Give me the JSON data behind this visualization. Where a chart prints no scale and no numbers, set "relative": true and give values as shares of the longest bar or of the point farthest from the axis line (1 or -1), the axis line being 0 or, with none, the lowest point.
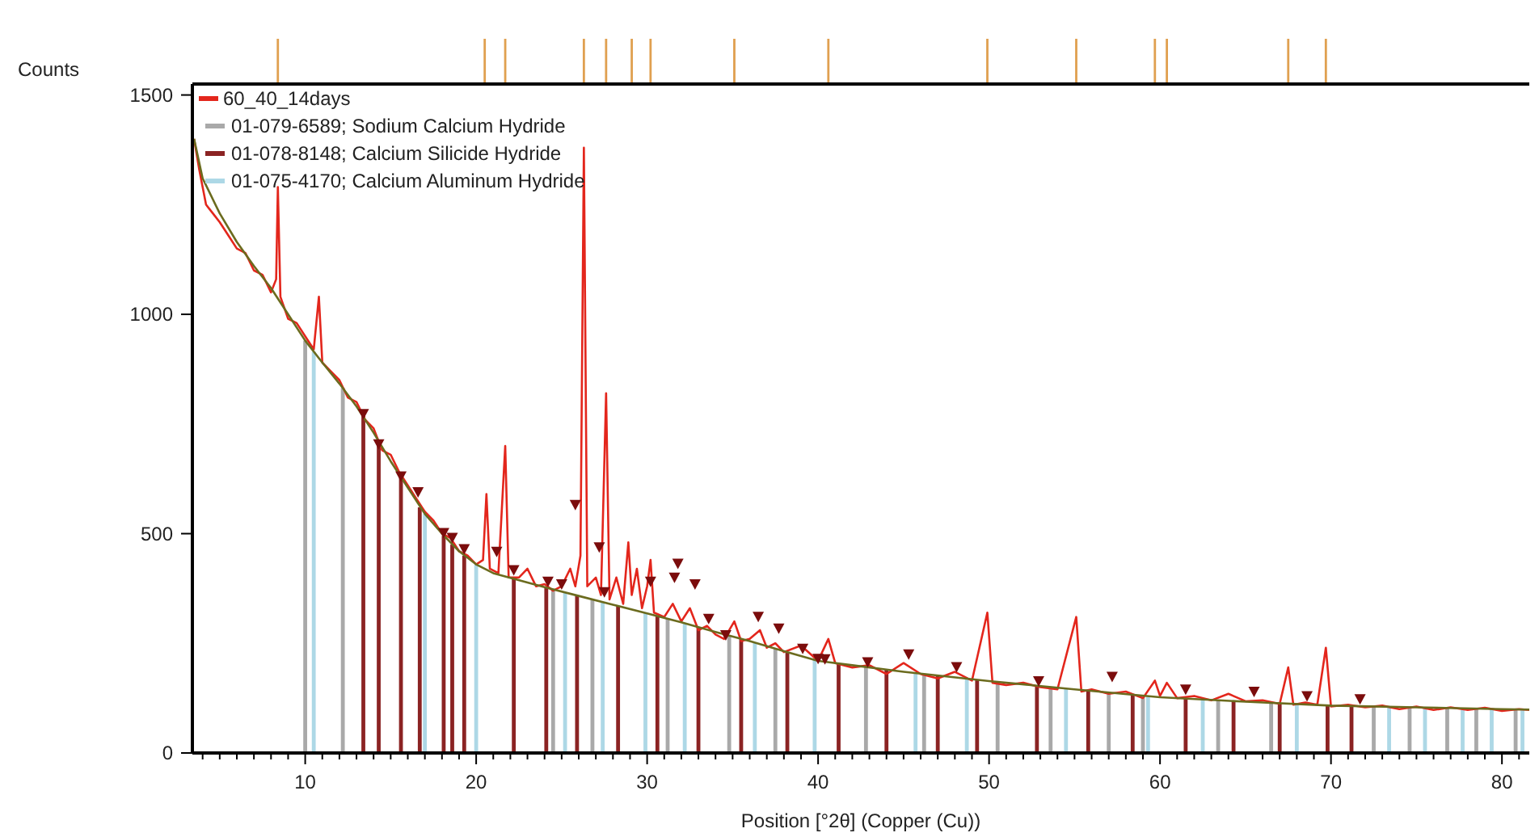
{
  "chart_data": [
    {
      "type": "bar",
      "relative": true,
      "xlim": [
        3.4,
        81.6
      ],
      "color": "#e0a050",
      "x": [
        8.4,
        20.5,
        21.7,
        26.3,
        27.6,
        29.1,
        30.2,
        35.1,
        40.6,
        49.9,
        55.1,
        59.7,
        60.4,
        67.5,
        69.7
      ],
      "values": [
        1,
        1,
        1,
        1,
        1,
        1,
        1,
        1,
        1,
        1,
        1,
        1,
        1,
        1,
        1
      ]
    },
    {
      "type": "line",
      "xlabel": "Position [°2θ] (Copper (Cu))",
      "ylabel": "Counts",
      "xlim": [
        3.4,
        81.6
      ],
      "ylim": [
        0,
        1525
      ],
      "xticks": [
        {
          "value": 4,
          "label": null
        },
        {
          "value": 5,
          "label": null
        },
        {
          "value": 6,
          "label": null
        },
        {
          "value": 7,
          "label": null
        },
        {
          "value": 8,
          "label": null
        },
        {
          "value": 9,
          "label": null
        },
        10,
        {
          "value": 11,
          "label": null
        },
        {
          "value": 12,
          "label": null
        },
        {
          "value": 13,
          "label": null
        },
        {
          "value": 14,
          "label": null
        },
        {
          "value": 15,
          "label": null
        },
        {
          "value": 16,
          "label": null
        },
        {
          "value": 17,
          "label": null
        },
        {
          "value": 18,
          "label": null
        },
        {
          "value": 19,
          "label": null
        },
        20,
        {
          "value": 21,
          "label": null
        },
        {
          "value": 22,
          "label": null
        },
        {
          "value": 23,
          "label": null
        },
        {
          "value": 24,
          "label": null
        },
        {
          "value": 25,
          "label": null
        },
        {
          "value": 26,
          "label": null
        },
        {
          "value": 27,
          "label": null
        },
        {
          "value": 28,
          "label": null
        },
        {
          "value": 29,
          "label": null
        },
        30,
        {
          "value": 31,
          "label": null
        },
        {
          "value": 32,
          "label": null
        },
        {
          "value": 33,
          "label": null
        },
        {
          "value": 34,
          "label": null
        },
        {
          "value": 35,
          "label": null
        },
        {
          "value": 36,
          "label": null
        },
        {
          "value": 37,
          "label": null
        },
        {
          "value": 38,
          "label": null
        },
        {
          "value": 39,
          "label": null
        },
        40,
        {
          "value": 41,
          "label": null
        },
        {
          "value": 42,
          "label": null
        },
        {
          "value": 43,
          "label": null
        },
        {
          "value": 44,
          "label": null
        },
        {
          "value": 45,
          "label": null
        },
        {
          "value": 46,
          "label": null
        },
        {
          "value": 47,
          "label": null
        },
        {
          "value": 48,
          "label": null
        },
        {
          "value": 49,
          "label": null
        },
        50,
        {
          "value": 51,
          "label": null
        },
        {
          "value": 52,
          "label": null
        },
        {
          "value": 53,
          "label": null
        },
        {
          "value": 54,
          "label": null
        },
        {
          "value": 55,
          "label": null
        },
        {
          "value": 56,
          "label": null
        },
        {
          "value": 57,
          "label": null
        },
        {
          "value": 58,
          "label": null
        },
        {
          "value": 59,
          "label": null
        },
        60,
        {
          "value": 61,
          "label": null
        },
        {
          "value": 62,
          "label": null
        },
        {
          "value": 63,
          "label": null
        },
        {
          "value": 64,
          "label": null
        },
        {
          "value": 65,
          "label": null
        },
        {
          "value": 66,
          "label": null
        },
        {
          "value": 67,
          "label": null
        },
        {
          "value": 68,
          "label": null
        },
        {
          "value": 69,
          "label": null
        },
        70,
        {
          "value": 71,
          "label": null
        },
        {
          "value": 72,
          "label": null
        },
        {
          "value": 73,
          "label": null
        },
        {
          "value": 74,
          "label": null
        },
        {
          "value": 75,
          "label": null
        },
        {
          "value": 76,
          "label": null
        },
        {
          "value": 77,
          "label": null
        },
        {
          "value": 78,
          "label": null
        },
        {
          "value": 79,
          "label": null
        },
        80,
        {
          "value": 81,
          "label": null
        }
      ],
      "yticks": [
        0,
        500,
        1000,
        1500
      ],
      "grid": false,
      "legend": "top left",
      "series": [
        {
          "name": "60_40_14days",
          "color": "#e3261c",
          "x": [
            3.5,
            3.8,
            4.2,
            4.6,
            5.0,
            5.5,
            6.0,
            6.5,
            7.0,
            7.5,
            8.0,
            8.3,
            8.4,
            8.55,
            9.0,
            9.5,
            10.0,
            10.5,
            10.8,
            11.0,
            11.5,
            12.0,
            12.5,
            13.0,
            13.5,
            14.0,
            14.5,
            15.0,
            15.5,
            16.0,
            16.5,
            17.0,
            17.5,
            18.0,
            18.5,
            19.0,
            19.5,
            20.0,
            20.4,
            20.6,
            20.8,
            21.3,
            21.7,
            21.9,
            22.5,
            23.0,
            23.5,
            24.0,
            24.5,
            25.0,
            25.5,
            25.8,
            26.1,
            26.3,
            26.5,
            27.0,
            27.3,
            27.6,
            27.8,
            28.2,
            28.6,
            28.9,
            29.1,
            29.4,
            29.7,
            30.0,
            30.2,
            30.4,
            31.0,
            31.5,
            32.0,
            32.5,
            33.0,
            33.5,
            34.0,
            34.5,
            35.1,
            35.5,
            36.0,
            36.6,
            37.0,
            37.5,
            38.0,
            39.0,
            40.0,
            40.6,
            41.0,
            42.0,
            43.0,
            44.0,
            45.0,
            46.0,
            47.0,
            48.0,
            49.0,
            49.9,
            50.2,
            51.0,
            52.0,
            53.0,
            54.0,
            55.1,
            55.4,
            56.0,
            57.0,
            58.0,
            59.0,
            59.7,
            60.0,
            60.4,
            61.0,
            62.0,
            63.0,
            64.0,
            65.0,
            66.0,
            67.0,
            67.5,
            67.8,
            68.5,
            69.2,
            69.7,
            70.0,
            71.0,
            72.0,
            73.0,
            74.0,
            75.0,
            76.0,
            77.0,
            78.0,
            79.0,
            80.0,
            81.0,
            81.6
          ],
          "values": [
            1400,
            1330,
            1250,
            1230,
            1210,
            1180,
            1150,
            1140,
            1100,
            1090,
            1050,
            1080,
            1290,
            1040,
            990,
            980,
            950,
            920,
            1040,
            890,
            870,
            850,
            810,
            800,
            760,
            740,
            690,
            680,
            640,
            610,
            580,
            550,
            530,
            500,
            490,
            460,
            450,
            430,
            440,
            590,
            420,
            410,
            700,
            400,
            400,
            420,
            380,
            385,
            370,
            380,
            420,
            380,
            450,
            1380,
            380,
            400,
            360,
            820,
            350,
            400,
            340,
            480,
            360,
            420,
            330,
            380,
            440,
            320,
            310,
            340,
            300,
            330,
            280,
            290,
            270,
            260,
            300,
            255,
            260,
            280,
            240,
            250,
            230,
            245,
            210,
            260,
            205,
            195,
            200,
            180,
            205,
            180,
            170,
            185,
            165,
            320,
            160,
            155,
            160,
            150,
            145,
            310,
            140,
            145,
            135,
            140,
            125,
            165,
            130,
            160,
            125,
            130,
            120,
            135,
            118,
            120,
            112,
            195,
            110,
            115,
            110,
            240,
            106,
            110,
            104,
            108,
            100,
            106,
            98,
            104,
            98,
            103,
            96,
            100,
            98
          ]
        },
        {
          "type": "bar",
          "name": "01-079-6589; Sodium Calcium Hydride",
          "color": "#a9a9a9",
          "x": [
            10.0,
            12.2,
            24.5,
            26.8,
            31.2,
            34.8,
            37.5,
            42.8,
            46.2,
            50.5,
            53.6,
            57.0,
            59.0,
            63.4,
            66.5,
            72.5,
            74.6,
            76.8,
            78.5,
            80.8
          ],
          "values": [
            940,
            832,
            372,
            350,
            306,
            268,
            237,
            196,
            180,
            162,
            150,
            138,
            131,
            120,
            114,
            106,
            104,
            103,
            101,
            100
          ]
        },
        {
          "type": "bar",
          "name": "01-078-8148; Calcium Silicide Hydride",
          "color": "#8b2323",
          "x": [
            13.4,
            14.3,
            15.6,
            16.7,
            18.1,
            18.6,
            19.3,
            22.2,
            24.1,
            25.9,
            28.3,
            30.6,
            33.0,
            35.5,
            38.2,
            41.2,
            44.0,
            47.0,
            49.3,
            52.8,
            55.8,
            58.4,
            61.5,
            64.3,
            67.0,
            69.8,
            71.2
          ],
          "values": [
            770,
            710,
            630,
            560,
            495,
            475,
            450,
            397,
            377,
            359,
            335,
            312,
            287,
            260,
            230,
            204,
            190,
            177,
            167,
            153,
            142,
            133,
            124,
            118,
            113,
            108,
            107
          ]
        },
        {
          "type": "bar",
          "name": "01-075-4170; Calcium Aluminum Hydride",
          "color": "#add8e6",
          "x": [
            10.5,
            17.0,
            20.0,
            25.2,
            27.4,
            29.9,
            32.2,
            36.3,
            39.8,
            45.7,
            48.7,
            54.5,
            59.3,
            62.5,
            68.0,
            73.4,
            75.5,
            77.7,
            79.4,
            81.2
          ],
          "values": [
            915,
            545,
            430,
            366,
            344,
            319,
            296,
            252,
            212,
            182,
            170,
            147,
            130,
            122,
            111,
            105,
            104,
            102,
            100,
            99
          ]
        },
        {
          "color": "#6b6b1e",
          "x": [
            3.5,
            4,
            5,
            6,
            7,
            8,
            9,
            10,
            11,
            12,
            13,
            14,
            15,
            16,
            17,
            18,
            19,
            20,
            21,
            22,
            24,
            26,
            28,
            30,
            32,
            34,
            36,
            38,
            40,
            42,
            45,
            50,
            55,
            60,
            65,
            70,
            75,
            80,
            81.6
          ],
          "values": [
            1400,
            1310,
            1230,
            1165,
            1110,
            1060,
            1000,
            940,
            890,
            842,
            790,
            730,
            665,
            605,
            545,
            500,
            460,
            430,
            410,
            399,
            378,
            358,
            338,
            318,
            298,
            276,
            255,
            232,
            210,
            200,
            185,
            164,
            145,
            127,
            117,
            108,
            104,
            100,
            99
          ]
        },
        {
          "type": "scatter",
          "color": "#7b0c0c",
          "marker": "triangle",
          "x": [
            13.4,
            14.3,
            15.6,
            16.6,
            18.1,
            18.6,
            19.3,
            21.2,
            22.2,
            24.2,
            25.0,
            25.8,
            27.2,
            27.5,
            30.2,
            31.6,
            31.8,
            32.8,
            33.6,
            34.6,
            36.5,
            37.7,
            39.1,
            40.0,
            40.4,
            42.9,
            45.3,
            48.1,
            52.9,
            57.2,
            61.5,
            65.5,
            68.6,
            71.7
          ],
          "values": [
            773,
            704,
            631,
            595,
            502,
            491,
            465,
            459,
            417,
            391,
            385,
            566,
            469,
            367,
            391,
            400,
            432,
            385,
            306,
            269,
            311,
            284,
            238,
            215,
            214,
            207,
            225,
            196,
            164,
            174,
            145,
            140,
            130,
            123
          ]
        }
      ]
    }
  ]
}
